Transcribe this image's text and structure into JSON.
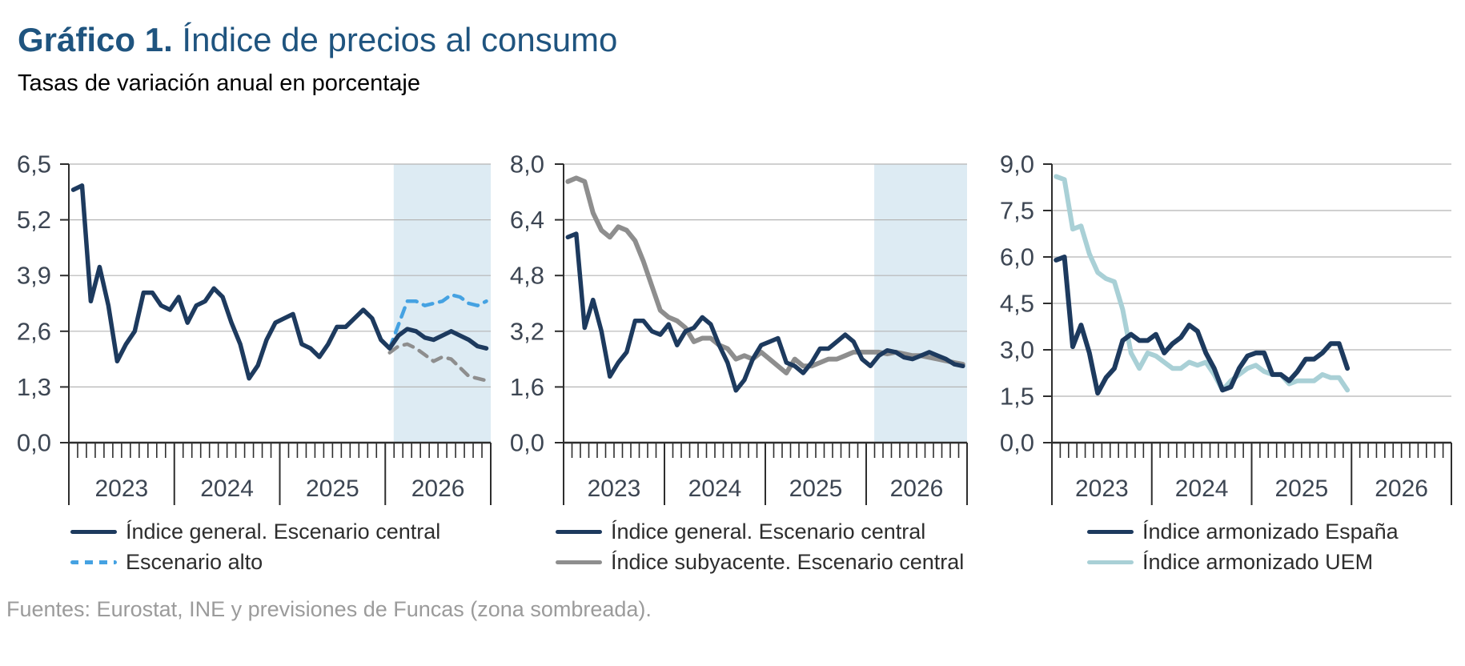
{
  "header": {
    "title_prefix": "Gráfico 1.",
    "title_rest": "Índice de precios al consumo",
    "subtitle": "Tasas de variación anual en porcentaje"
  },
  "footer": {
    "source": "Fuentes: Eurostat, INE y previsiones de Funcas (zona sombreada)."
  },
  "colors": {
    "navy": "#1d3a5e",
    "light_blue": "#45a2e2",
    "gray": "#8e8e8e",
    "teal": "#a9d0d6",
    "forecast_band": "#ddebf3",
    "gridline": "#b5b5b5",
    "axis": "#2e2e2e",
    "tick_label": "#3d4653",
    "title_blue": "#1f547f",
    "footer_gray": "#9b9b9b"
  },
  "chart_data": [
    {
      "type": "line",
      "title": "IPC España: escenarios",
      "x_start": "2023-01",
      "months": 48,
      "x_years": [
        "2023",
        "2024",
        "2025",
        "2026"
      ],
      "ylim": [
        0,
        6.5
      ],
      "y_ticks": [
        {
          "value": 6.5,
          "label": "6,5"
        },
        {
          "value": 5.2,
          "label": "5,2"
        },
        {
          "value": 3.9,
          "label": "3,9"
        },
        {
          "value": 2.6,
          "label": "2,6"
        },
        {
          "value": 1.3,
          "label": "1,3"
        },
        {
          "value": 0.0,
          "label": "0,0"
        }
      ],
      "grid": true,
      "forecast_band": {
        "start_fraction": 0.77,
        "note": "zona sombreada (previsiones)"
      },
      "series": [
        {
          "key": "central",
          "name": "Índice general. Escenario central",
          "color": "#1d3a5e",
          "dash": false,
          "width": 5.5,
          "start_index": 0,
          "values": [
            5.9,
            6.0,
            3.3,
            4.1,
            3.2,
            1.9,
            2.3,
            2.6,
            3.5,
            3.5,
            3.2,
            3.1,
            3.4,
            2.8,
            3.2,
            3.3,
            3.6,
            3.4,
            2.8,
            2.3,
            1.5,
            1.8,
            2.4,
            2.8,
            2.9,
            3.0,
            2.3,
            2.2,
            2.0,
            2.3,
            2.7,
            2.7,
            2.9,
            3.1,
            2.9,
            2.4,
            2.2,
            2.5,
            2.65,
            2.6,
            2.45,
            2.4,
            2.5,
            2.6,
            2.5,
            2.4,
            2.25,
            2.2
          ]
        },
        {
          "key": "alto",
          "name": "Escenario alto",
          "color": "#45a2e2",
          "dash": true,
          "width": 4.5,
          "start_index": 36,
          "values": [
            2.2,
            2.75,
            3.3,
            3.3,
            3.2,
            3.25,
            3.3,
            3.45,
            3.4,
            3.25,
            3.2,
            3.3
          ]
        },
        {
          "key": "bajo",
          "name": "Escenario bajo (sin etiqueta en leyenda)",
          "color": "#8e8e8e",
          "dash": true,
          "width": 4.5,
          "start_index": 36,
          "values": [
            2.1,
            2.25,
            2.3,
            2.2,
            2.05,
            1.9,
            2.0,
            1.95,
            1.75,
            1.55,
            1.5,
            1.45
          ]
        }
      ],
      "legend": [
        {
          "label": "Índice general. Escenario central",
          "series_index": 0
        },
        {
          "label": "Escenario alto",
          "series_index": 1
        }
      ]
    },
    {
      "type": "line",
      "title": "IPC España: general y subyacente",
      "x_start": "2023-01",
      "months": 48,
      "x_years": [
        "2023",
        "2024",
        "2025",
        "2026"
      ],
      "ylim": [
        0,
        8.0
      ],
      "y_ticks": [
        {
          "value": 8.0,
          "label": "8,0"
        },
        {
          "value": 6.4,
          "label": "6,4"
        },
        {
          "value": 4.8,
          "label": "4,8"
        },
        {
          "value": 3.2,
          "label": "3,2"
        },
        {
          "value": 1.6,
          "label": "1,6"
        },
        {
          "value": 0.0,
          "label": "0,0"
        }
      ],
      "grid": true,
      "forecast_band": {
        "start_fraction": 0.77,
        "note": "zona sombreada (previsiones)"
      },
      "series": [
        {
          "key": "general",
          "name": "Índice general. Escenario central",
          "color": "#1d3a5e",
          "dash": false,
          "width": 5.5,
          "start_index": 0,
          "values": [
            5.9,
            6.0,
            3.3,
            4.1,
            3.2,
            1.9,
            2.3,
            2.6,
            3.5,
            3.5,
            3.2,
            3.1,
            3.4,
            2.8,
            3.2,
            3.3,
            3.6,
            3.4,
            2.8,
            2.3,
            1.5,
            1.8,
            2.4,
            2.8,
            2.9,
            3.0,
            2.3,
            2.2,
            2.0,
            2.3,
            2.7,
            2.7,
            2.9,
            3.1,
            2.9,
            2.4,
            2.2,
            2.5,
            2.65,
            2.6,
            2.45,
            2.4,
            2.5,
            2.6,
            2.5,
            2.4,
            2.25,
            2.2
          ]
        },
        {
          "key": "subyacente",
          "name": "Índice subyacente. Escenario central",
          "color": "#8e8e8e",
          "dash": false,
          "width": 6,
          "start_index": 0,
          "values": [
            7.5,
            7.6,
            7.5,
            6.6,
            6.1,
            5.9,
            6.2,
            6.1,
            5.8,
            5.2,
            4.5,
            3.8,
            3.6,
            3.5,
            3.3,
            2.9,
            3.0,
            3.0,
            2.8,
            2.7,
            2.4,
            2.5,
            2.4,
            2.6,
            2.4,
            2.2,
            2.0,
            2.4,
            2.2,
            2.2,
            2.3,
            2.4,
            2.4,
            2.5,
            2.6,
            2.6,
            2.6,
            2.6,
            2.55,
            2.6,
            2.55,
            2.5,
            2.5,
            2.45,
            2.4,
            2.35,
            2.3,
            2.25
          ]
        }
      ],
      "legend": [
        {
          "label": "Índice general. Escenario central",
          "series_index": 0
        },
        {
          "label": "Índice subyacente. Escenario central",
          "series_index": 1
        }
      ]
    },
    {
      "type": "line",
      "title": "Índice armonizado: España y UEM",
      "x_start": "2023-01",
      "months": 48,
      "x_years": [
        "2023",
        "2024",
        "2025",
        "2026"
      ],
      "ylim": [
        0,
        9.0
      ],
      "y_ticks": [
        {
          "value": 9.0,
          "label": "9,0"
        },
        {
          "value": 7.5,
          "label": "7,5"
        },
        {
          "value": 6.0,
          "label": "6,0"
        },
        {
          "value": 4.5,
          "label": "4,5"
        },
        {
          "value": 3.0,
          "label": "3,0"
        },
        {
          "value": 1.5,
          "label": "1,5"
        },
        {
          "value": 0.0,
          "label": "0,0"
        }
      ],
      "grid": true,
      "forecast_band": null,
      "series": [
        {
          "key": "espana",
          "name": "Índice armonizado España",
          "color": "#1d3a5e",
          "dash": false,
          "width": 6,
          "start_index": 0,
          "values": [
            5.9,
            6.0,
            3.1,
            3.8,
            2.9,
            1.6,
            2.1,
            2.4,
            3.3,
            3.5,
            3.3,
            3.3,
            3.5,
            2.9,
            3.2,
            3.4,
            3.8,
            3.6,
            2.9,
            2.4,
            1.7,
            1.8,
            2.4,
            2.8,
            2.9,
            2.9,
            2.2,
            2.2,
            2.0,
            2.3,
            2.7,
            2.7,
            2.9,
            3.2,
            3.2,
            2.4
          ]
        },
        {
          "key": "uem",
          "name": "Índice armonizado UEM",
          "color": "#a9d0d6",
          "dash": false,
          "width": 6,
          "start_index": 0,
          "values": [
            8.6,
            8.5,
            6.9,
            7.0,
            6.1,
            5.5,
            5.3,
            5.2,
            4.3,
            2.9,
            2.4,
            2.9,
            2.8,
            2.6,
            2.4,
            2.4,
            2.6,
            2.5,
            2.6,
            2.2,
            1.7,
            2.0,
            2.2,
            2.4,
            2.5,
            2.3,
            2.2,
            2.2,
            1.9,
            2.0,
            2.0,
            2.0,
            2.2,
            2.1,
            2.1,
            1.7
          ]
        }
      ],
      "legend": [
        {
          "label": "Índice armonizado España",
          "series_index": 0
        },
        {
          "label": "Índice armonizado UEM",
          "series_index": 1
        }
      ]
    }
  ]
}
